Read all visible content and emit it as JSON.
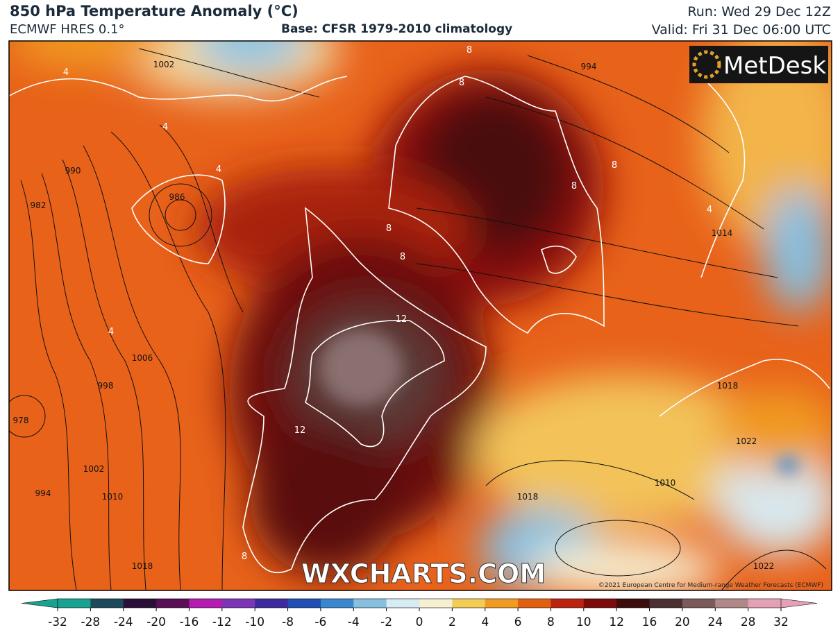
{
  "header": {
    "title": "850 hPa Temperature Anomaly (°C)",
    "model": "ECMWF HRES 0.1°",
    "base": "Base: CFSR 1979-2010 climatology",
    "run": "Run: Wed 29 Dec 12Z",
    "valid": "Valid: Fri 31 Dec 06:00 UTC"
  },
  "logo": "MetDesk",
  "watermark": "WXCHARTS.COM",
  "copyright": "©2021 European Centre for Medium-range Weather Forecasts (ECMWF)",
  "map_labels": [
    "1002",
    "994",
    "990",
    "982",
    "986",
    "978",
    "998",
    "1006",
    "1002",
    "1010",
    "1018",
    "994",
    "1014",
    "1018",
    "1010",
    "1022",
    "1022",
    "1018",
    "4",
    "4",
    "4",
    "4",
    "8",
    "8",
    "8",
    "8",
    "8",
    "8",
    "12",
    "12",
    "8",
    "4"
  ],
  "colorbar": {
    "ticks": [
      -32,
      -28,
      -24,
      -20,
      -16,
      -12,
      -10,
      -8,
      -6,
      -4,
      -2,
      0,
      2,
      4,
      6,
      8,
      10,
      12,
      16,
      20,
      24,
      28,
      32
    ],
    "colors": [
      "#17a38f",
      "#1d4a5a",
      "#2a1038",
      "#5a0f55",
      "#b51bb0",
      "#7d35b8",
      "#3d2a9e",
      "#1f4fb5",
      "#3a86cf",
      "#86bfe0",
      "#d7ebf2",
      "#f6efd2",
      "#f3cc55",
      "#f09a22",
      "#e0600f",
      "#bb2210",
      "#7e0b0b",
      "#3d0c0c",
      "#4a3030",
      "#7a5a5a",
      "#b08888",
      "#e4a0b4"
    ]
  }
}
